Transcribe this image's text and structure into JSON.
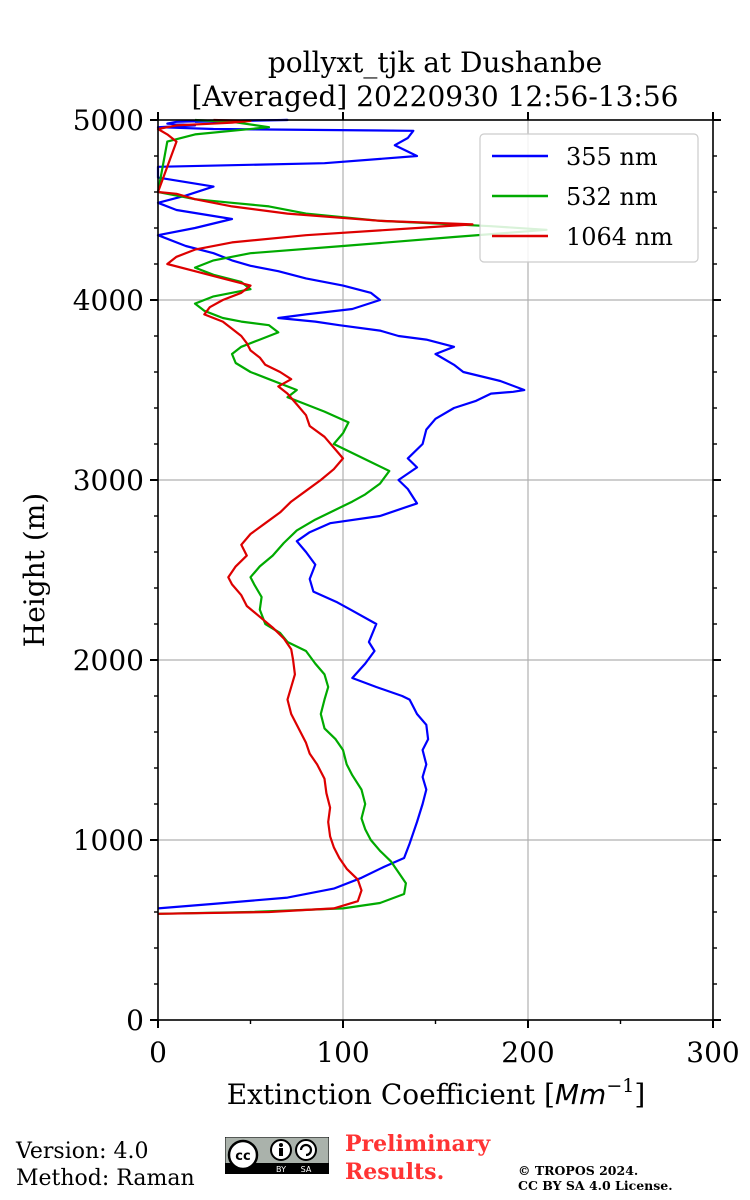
{
  "chart_data": {
    "type": "line",
    "title_line1": "pollyxt_tjk at Dushanbe",
    "title_line2": "[Averaged] 20220930 12:56-13:56",
    "xlabel_main": "Extinction Coefficient ",
    "xlabel_unit": "Mm",
    "xlabel_exp": "−1",
    "ylabel": "Height (m)",
    "xlim": [
      0,
      300
    ],
    "ylim": [
      0,
      5000
    ],
    "xticks": [
      0,
      100,
      200,
      300
    ],
    "xtick_labels": [
      "0",
      "100",
      "200",
      "300"
    ],
    "yticks": [
      0,
      1000,
      2000,
      3000,
      4000,
      5000
    ],
    "ytick_labels": [
      "0",
      "1000",
      "2000",
      "3000",
      "4000",
      "5000"
    ],
    "grid": true,
    "legend_position": "top-right",
    "series": [
      {
        "name": "355 nm",
        "color": "#0000ff",
        "x": [
          0,
          30,
          70,
          95,
          110,
          122,
          133,
          136,
          138,
          140,
          143,
          145,
          143,
          145,
          143,
          146,
          145,
          140,
          138,
          136,
          132,
          118,
          105,
          112,
          117,
          114,
          118,
          104,
          97,
          84,
          82,
          85,
          80,
          75,
          82,
          93,
          120,
          140,
          135,
          130,
          140,
          135,
          143,
          145,
          150,
          160,
          172,
          180,
          192,
          198,
          185,
          165,
          160,
          150,
          160,
          145,
          130,
          120,
          98,
          85,
          65,
          80,
          105,
          120,
          115,
          100,
          80,
          65,
          50,
          40,
          30,
          15,
          0,
          20,
          40,
          10,
          0,
          15,
          30,
          0,
          0,
          90,
          140,
          128,
          135,
          138,
          30,
          0,
          20,
          5,
          10,
          30,
          50,
          70,
          20
        ],
        "y": [
          620,
          645,
          680,
          730,
          790,
          850,
          900,
          980,
          1040,
          1100,
          1200,
          1280,
          1350,
          1420,
          1500,
          1560,
          1640,
          1700,
          1740,
          1780,
          1800,
          1850,
          1900,
          1980,
          2050,
          2100,
          2200,
          2280,
          2320,
          2380,
          2450,
          2530,
          2600,
          2660,
          2710,
          2760,
          2800,
          2870,
          2950,
          3000,
          3070,
          3120,
          3200,
          3280,
          3340,
          3400,
          3440,
          3480,
          3490,
          3500,
          3550,
          3600,
          3640,
          3700,
          3740,
          3780,
          3800,
          3830,
          3860,
          3880,
          3900,
          3920,
          3950,
          4000,
          4040,
          4080,
          4120,
          4160,
          4190,
          4220,
          4260,
          4300,
          4360,
          4400,
          4450,
          4500,
          4540,
          4580,
          4630,
          4680,
          4740,
          4760,
          4800,
          4860,
          4900,
          4940,
          4950,
          4960,
          4970,
          4980,
          4990,
          4995,
          4998,
          5000,
          4990
        ]
      },
      {
        "name": "532 nm",
        "color": "#00aa00",
        "x": [
          0,
          50,
          100,
          120,
          133,
          134,
          130,
          126,
          120,
          115,
          112,
          110,
          112,
          110,
          105,
          102,
          100,
          96,
          90,
          88,
          90,
          92,
          90,
          85,
          80,
          70,
          66,
          58,
          55,
          56,
          52,
          50,
          55,
          62,
          68,
          75,
          85,
          95,
          105,
          112,
          120,
          125,
          115,
          105,
          95,
          100,
          103,
          90,
          80,
          70,
          75,
          60,
          50,
          42,
          40,
          45,
          55,
          65,
          60,
          45,
          35,
          25,
          20,
          30,
          50,
          45,
          30,
          20,
          30,
          50,
          100,
          160,
          210,
          180,
          120,
          80,
          60,
          40,
          20,
          10,
          0,
          5,
          20,
          60,
          40,
          20
        ],
        "y": [
          590,
          600,
          620,
          650,
          700,
          760,
          820,
          880,
          940,
          1000,
          1060,
          1120,
          1200,
          1280,
          1360,
          1420,
          1500,
          1560,
          1620,
          1700,
          1780,
          1850,
          1920,
          1980,
          2050,
          2100,
          2150,
          2200,
          2280,
          2350,
          2420,
          2460,
          2520,
          2580,
          2650,
          2720,
          2780,
          2830,
          2880,
          2920,
          2980,
          3050,
          3100,
          3150,
          3200,
          3260,
          3320,
          3380,
          3420,
          3460,
          3500,
          3560,
          3600,
          3650,
          3700,
          3740,
          3780,
          3820,
          3860,
          3880,
          3900,
          3940,
          3980,
          4020,
          4060,
          4100,
          4140,
          4180,
          4220,
          4260,
          4300,
          4350,
          4390,
          4410,
          4440,
          4480,
          4520,
          4540,
          4560,
          4580,
          4600,
          4880,
          4920,
          4960,
          4990,
          5000
        ]
      },
      {
        "name": "1064 nm",
        "color": "#dd0000",
        "x": [
          0,
          60,
          95,
          108,
          110,
          108,
          102,
          98,
          95,
          93,
          92,
          93,
          91,
          90,
          86,
          82,
          80,
          76,
          72,
          70,
          72,
          74,
          73,
          72,
          68,
          62,
          55,
          48,
          45,
          40,
          38,
          42,
          48,
          45,
          50,
          58,
          66,
          72,
          80,
          88,
          95,
          100,
          95,
          90,
          82,
          80,
          75,
          70,
          65,
          72,
          66,
          58,
          55,
          50,
          48,
          45,
          40,
          35,
          30,
          25,
          28,
          35,
          45,
          50,
          35,
          20,
          5,
          10,
          20,
          40,
          80,
          140,
          170,
          120,
          70,
          40,
          20,
          10,
          0,
          10,
          5,
          0,
          10,
          40,
          50,
          30
        ],
        "y": [
          590,
          600,
          620,
          660,
          720,
          780,
          840,
          900,
          960,
          1020,
          1100,
          1180,
          1260,
          1340,
          1420,
          1480,
          1540,
          1620,
          1700,
          1780,
          1850,
          1920,
          2000,
          2060,
          2120,
          2180,
          2240,
          2300,
          2360,
          2420,
          2460,
          2520,
          2580,
          2640,
          2700,
          2760,
          2820,
          2880,
          2940,
          3000,
          3060,
          3120,
          3180,
          3240,
          3300,
          3360,
          3420,
          3480,
          3520,
          3560,
          3600,
          3640,
          3680,
          3720,
          3760,
          3800,
          3840,
          3880,
          3900,
          3920,
          3960,
          4000,
          4040,
          4080,
          4120,
          4160,
          4200,
          4240,
          4280,
          4320,
          4360,
          4400,
          4420,
          4440,
          4480,
          4520,
          4560,
          4590,
          4600,
          4880,
          4920,
          4950,
          4970,
          4985,
          4995,
          5000
        ]
      }
    ]
  },
  "footer": {
    "version_line": "Version: 4.0",
    "method_line": "Method: Raman",
    "license_badge": {
      "icon": "cc-by-sa-icon",
      "by_text": "BY",
      "sa_text": "SA"
    },
    "preliminary_line1": "Preliminary",
    "preliminary_line2": "Results.",
    "copyright_line1": "© TROPOS 2024.",
    "copyright_line2": "CC BY SA 4.0 License."
  }
}
